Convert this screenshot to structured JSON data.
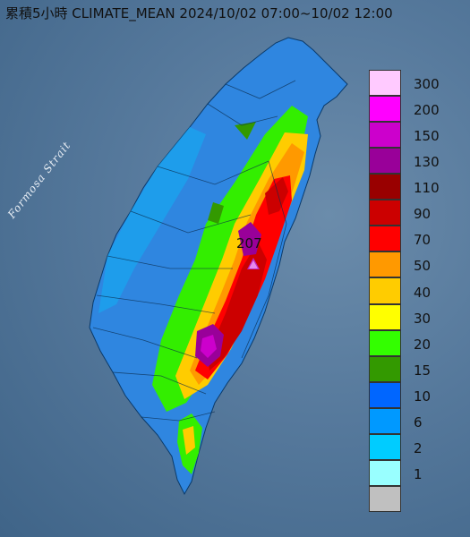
{
  "title": "累積5小時 CLIMATE_MEAN 2024/10/02 07:00~10/02 12:00",
  "strait_label": "Formosa Strait",
  "peak_label": "207",
  "legend": [
    {
      "label": "300",
      "color": "#ffcaff"
    },
    {
      "label": "200",
      "color": "#ff00ff"
    },
    {
      "label": "150",
      "color": "#cc00cc"
    },
    {
      "label": "130",
      "color": "#990099"
    },
    {
      "label": "110",
      "color": "#990000"
    },
    {
      "label": "90",
      "color": "#cc0000"
    },
    {
      "label": "70",
      "color": "#ff0000"
    },
    {
      "label": "50",
      "color": "#ff9900"
    },
    {
      "label": "40",
      "color": "#ffcc00"
    },
    {
      "label": "30",
      "color": "#ffff00"
    },
    {
      "label": "20",
      "color": "#33ff00"
    },
    {
      "label": "15",
      "color": "#339900"
    },
    {
      "label": "10",
      "color": "#0066ff"
    },
    {
      "label": "6",
      "color": "#0099ff"
    },
    {
      "label": "2",
      "color": "#00ccff"
    },
    {
      "label": "1",
      "color": "#99ffff"
    },
    {
      "label": "",
      "color": "#c0c0c0"
    }
  ]
}
